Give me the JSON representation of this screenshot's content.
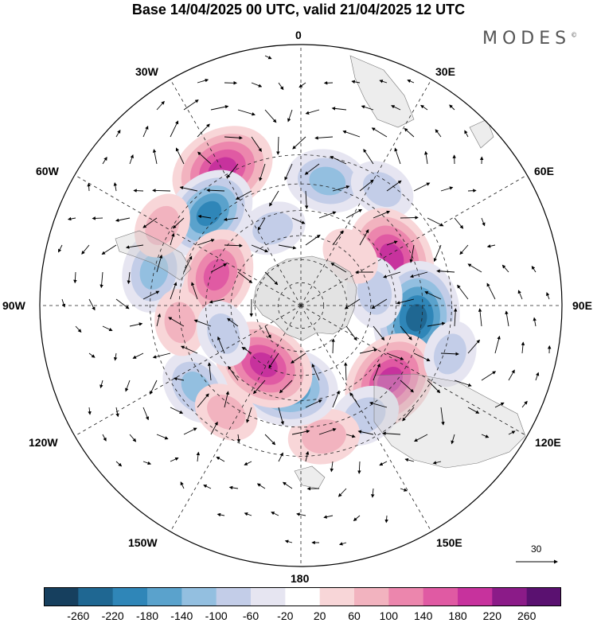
{
  "title": "Base 14/04/2025 00 UTC, valid 21/04/2025 12 UTC",
  "brand": {
    "text": "MODES",
    "mark": "©"
  },
  "projection": "south polar stereographic",
  "longitude_labels": {
    "top": "0",
    "top_right": "30E",
    "right_upper": "60E",
    "right": "90E",
    "right_lower": "120E",
    "bottom_right": "150E",
    "bottom": "180",
    "bottom_left": "150W",
    "left_lower": "120W",
    "left": "90W",
    "left_upper": "60W",
    "top_left": "30W"
  },
  "reference_vector": {
    "label": "30"
  },
  "colorbar": {
    "ticks": [
      "-260",
      "-220",
      "-180",
      "-140",
      "-100",
      "-60",
      "-20",
      "20",
      "60",
      "100",
      "140",
      "180",
      "220",
      "260"
    ],
    "colors": [
      "#163f5e",
      "#1f6792",
      "#2f86b8",
      "#5aa2cc",
      "#93bfe0",
      "#c3cde8",
      "#e6e5f1",
      "#ffffff",
      "#f8d6d8",
      "#f2b3bf",
      "#ec86ad",
      "#e05aa3",
      "#c7329d",
      "#8b1b88",
      "#5a1170"
    ]
  },
  "anomalies": [
    {
      "lon": 330,
      "lat": -28,
      "value": 210
    },
    {
      "lon": 315,
      "lat": -37,
      "value": -180
    },
    {
      "lon": 340,
      "lat": -55,
      "value": -60
    },
    {
      "lon": 12,
      "lat": -38,
      "value": -120
    },
    {
      "lon": 35,
      "lat": -33,
      "value": -60
    },
    {
      "lon": 62,
      "lat": -47,
      "value": 200
    },
    {
      "lon": 96,
      "lat": -42,
      "value": -240
    },
    {
      "lon": 80,
      "lat": -58,
      "value": -80
    },
    {
      "lon": 130,
      "lat": -42,
      "value": 200
    },
    {
      "lon": 150,
      "lat": -38,
      "value": -80
    },
    {
      "lon": 170,
      "lat": -36,
      "value": 80
    },
    {
      "lon": 190,
      "lat": -55,
      "value": -200
    },
    {
      "lon": 212,
      "lat": -60,
      "value": 200
    },
    {
      "lon": 232,
      "lat": -36,
      "value": -100
    },
    {
      "lon": 215,
      "lat": -37,
      "value": 60
    },
    {
      "lon": 290,
      "lat": -52,
      "value": 160
    },
    {
      "lon": 283,
      "lat": -30,
      "value": -120
    },
    {
      "lon": 262,
      "lat": -40,
      "value": 60
    },
    {
      "lon": 250,
      "lat": -55,
      "value": -60
    },
    {
      "lon": 300,
      "lat": -27,
      "value": 60
    },
    {
      "lon": 45,
      "lat": -60,
      "value": 40
    },
    {
      "lon": 108,
      "lat": -28,
      "value": -60
    }
  ]
}
